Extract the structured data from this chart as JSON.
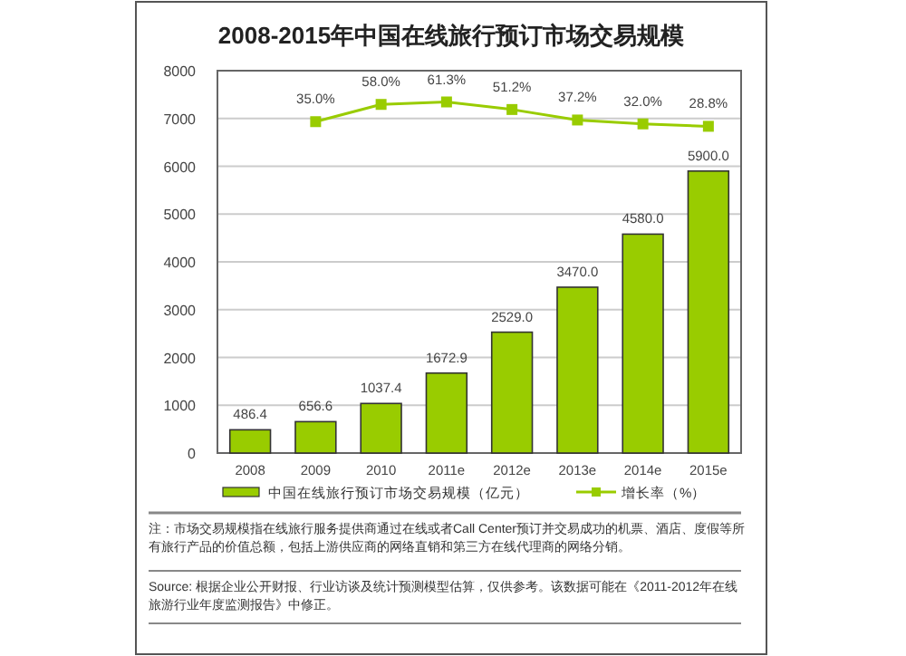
{
  "chart_data": {
    "type": "bar",
    "title": "2008-2015年中国在线旅行预订市场交易规模",
    "categories": [
      "2008",
      "2009",
      "2010",
      "2011e",
      "2012e",
      "2013e",
      "2014e",
      "2015e"
    ],
    "series": [
      {
        "name": "中国在线旅行预订市场交易规模（亿元）",
        "color": "#99cc00",
        "values": [
          486.4,
          656.6,
          1037.4,
          1672.9,
          2529.0,
          3470.0,
          4580.0,
          5900.0
        ],
        "value_labels": [
          "486.4",
          "656.6",
          "1037.4",
          "1672.9",
          "2529.0",
          "3470.0",
          "4580.0",
          "5900.0"
        ]
      },
      {
        "name": "增长率（%）",
        "type": "line",
        "axis": "y2",
        "color": "#99cc00",
        "marker": "square",
        "values": [
          null,
          35.0,
          58.0,
          61.3,
          51.2,
          37.2,
          32.0,
          28.8
        ],
        "value_labels": [
          null,
          "35.0%",
          "58.0%",
          "61.3%",
          "51.2%",
          "37.2%",
          "32.0%",
          "28.8%"
        ]
      }
    ],
    "ylim": [
      0,
      8000
    ],
    "yticks": [
      0,
      1000,
      2000,
      3000,
      4000,
      5000,
      6000,
      7000,
      8000
    ],
    "y2lim": [
      -407,
      103
    ],
    "grid": "y",
    "legend": "bottom",
    "annotations": [
      "注：市场交易规模指在线旅行服务提供商通过在线或者Call Center预订并交易成功的机票、酒店、度假等所有旅行产品的价值总额，包括上游供应商的网络直销和第三方在线代理商的网络分销。",
      "Source: 根据企业公开财报、行业访谈及统计预测模型估算，仅供参考。该数据可能在《2011-2012年在线旅游行业年度监测报告》中修正。"
    ]
  }
}
